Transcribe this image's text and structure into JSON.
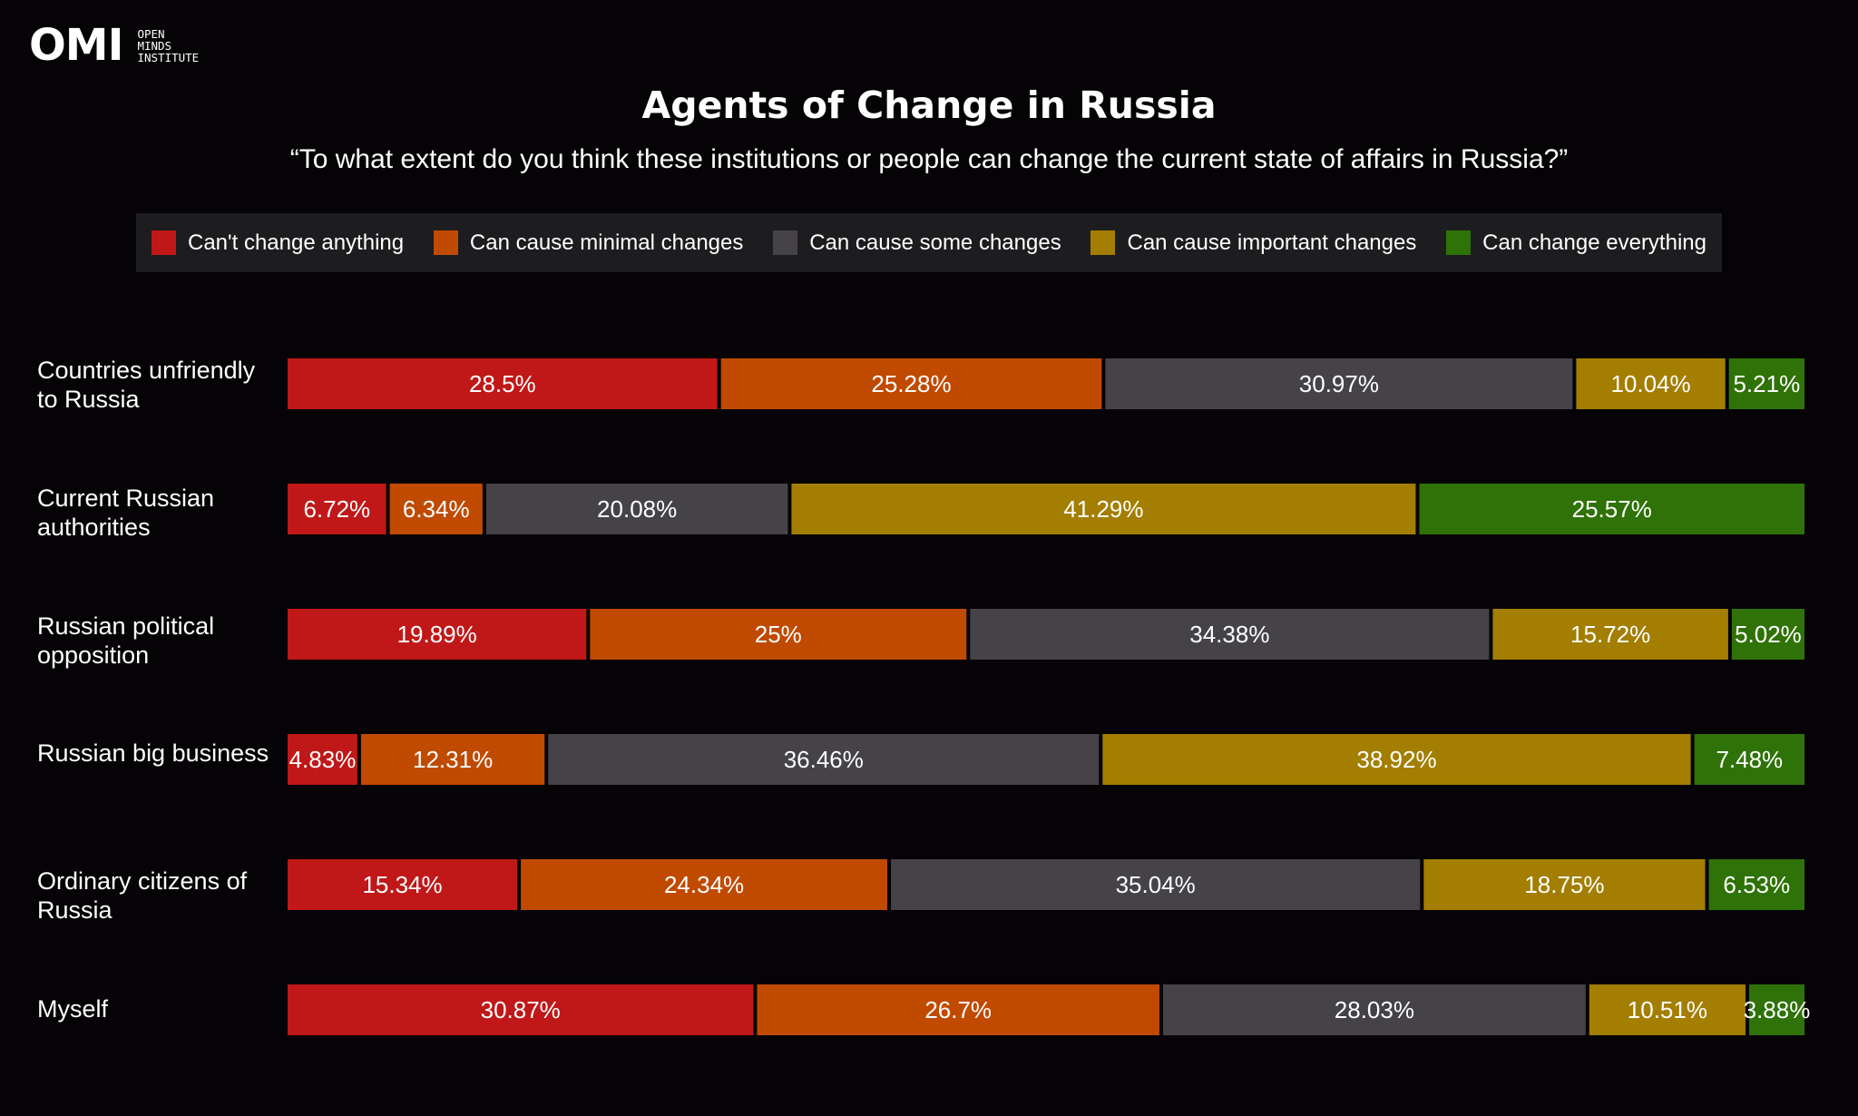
{
  "logo": {
    "mark": "OMI",
    "lines": [
      "OPEN",
      "MINDS",
      "INSTITUTE"
    ]
  },
  "chart_data": {
    "type": "bar",
    "orientation": "horizontal",
    "stacked": true,
    "title": "Agents of Change in Russia",
    "subtitle": "“To what extent do you think these institutions or people can change the current state of affairs in Russia?”",
    "legend_position": "top",
    "categories": [
      "Countries unfriendly to Russia",
      "Current Russian authorities",
      "Russian political opposition",
      "Russian big business",
      "Ordinary citizens of Russia",
      "Myself"
    ],
    "series": [
      {
        "name": "Can't change anything",
        "color": "#c01818",
        "values": [
          28.5,
          6.72,
          19.89,
          4.83,
          15.34,
          30.87
        ],
        "labels": [
          "28.5%",
          "6.72%",
          "19.89%",
          "4.83%",
          "15.34%",
          "30.87%"
        ]
      },
      {
        "name": "Can cause minimal changes",
        "color": "#c04a00",
        "values": [
          25.28,
          6.34,
          25,
          12.31,
          24.34,
          26.7
        ],
        "labels": [
          "25.28%",
          "6.34%",
          "25%",
          "12.31%",
          "24.34%",
          "26.7%"
        ]
      },
      {
        "name": "Can cause some changes",
        "color": "#454347",
        "values": [
          30.97,
          20.08,
          34.38,
          36.46,
          35.04,
          28.03
        ],
        "labels": [
          "30.97%",
          "20.08%",
          "34.38%",
          "36.46%",
          "35.04%",
          "28.03%"
        ]
      },
      {
        "name": "Can cause important changes",
        "color": "#a37e00",
        "values": [
          10.04,
          41.29,
          15.72,
          38.92,
          18.75,
          10.51
        ],
        "labels": [
          "10.04%",
          "41.29%",
          "15.72%",
          "38.92%",
          "18.75%",
          "10.51%"
        ]
      },
      {
        "name": "Can change everything",
        "color": "#2f7207",
        "values": [
          5.21,
          25.57,
          5.02,
          7.48,
          6.53,
          3.88
        ],
        "labels": [
          "5.21%",
          "25.57%",
          "5.02%",
          "7.48%",
          "6.53%",
          "3.88%"
        ]
      }
    ],
    "xlim": [
      0,
      100
    ]
  }
}
